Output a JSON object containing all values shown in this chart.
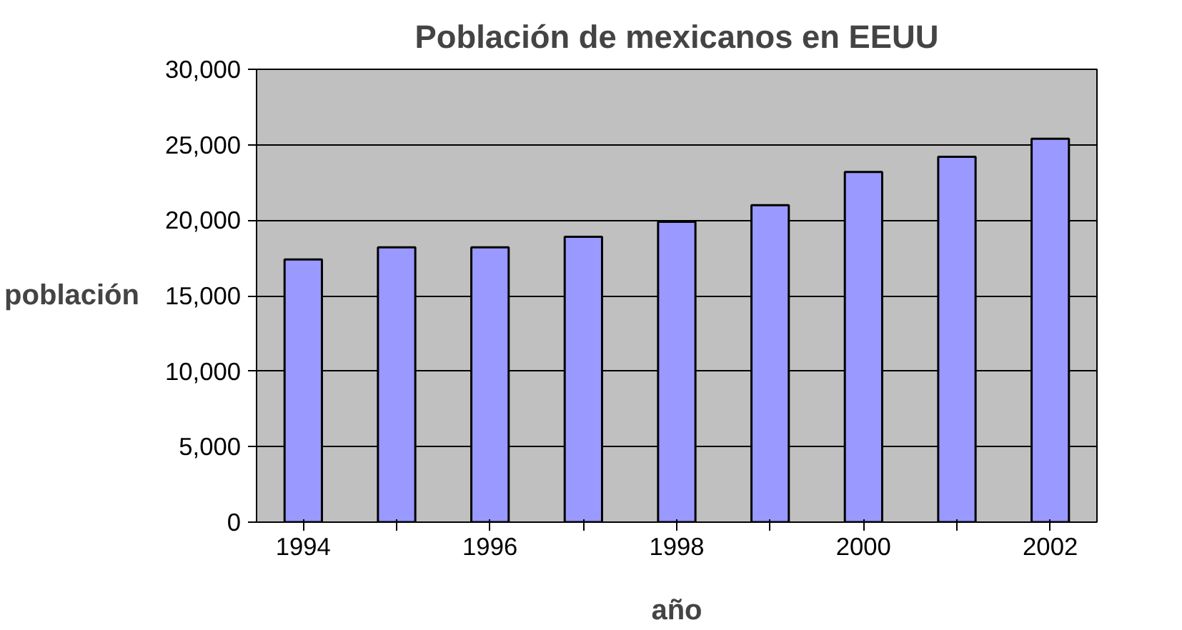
{
  "chart_data": {
    "type": "bar",
    "title": "Población de mexicanos en EEUU",
    "xlabel": "año",
    "ylabel": "población",
    "categories": [
      "1994",
      null,
      "1996",
      null,
      "1998",
      null,
      "2000",
      null,
      "2002"
    ],
    "values": [
      17400,
      18200,
      18200,
      18900,
      19900,
      21000,
      23200,
      24200,
      25400
    ],
    "color": "#9999ff",
    "ylim": [
      0,
      30000
    ],
    "yticks": [
      0,
      {
        "value": 5000,
        "label": "5,000"
      },
      {
        "value": 10000,
        "label": "10,000"
      },
      {
        "value": 15000,
        "label": "15,000"
      },
      {
        "value": 20000,
        "label": "20,000"
      },
      {
        "value": 25000,
        "label": "25,000"
      },
      {
        "value": 30000,
        "label": "30,000"
      }
    ],
    "grid": "y"
  }
}
